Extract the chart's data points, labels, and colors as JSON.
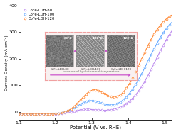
{
  "title": "",
  "xlabel": "Potential (V vs. RHE)",
  "ylabel": "Current Density (mA cm⁻²)",
  "xlim": [
    1.1,
    1.52
  ],
  "ylim": [
    -30,
    400
  ],
  "xticks": [
    1.1,
    1.2,
    1.3,
    1.4,
    1.5
  ],
  "yticks": [
    0,
    100,
    200,
    300,
    400
  ],
  "series": [
    {
      "label": "CoFe-LDH-80",
      "color": "#bb88ee",
      "markersize": 2.0
    },
    {
      "label": "CoFe-LDH-100",
      "color": "#66aaff",
      "markersize": 2.0
    },
    {
      "label": "CoFe-LDH-120",
      "color": "#ff8833",
      "markersize": 2.0
    }
  ],
  "bg_color": "#ffffff",
  "inset_text": "Increase of hydrothermal temperature",
  "inset_labels": [
    "CoFe-LDH-80",
    "CoFe-LDH-100",
    "CoFe-LDH-120"
  ],
  "inset_temps": [
    "80℃",
    "100℃",
    "120℃"
  ],
  "arrow_color": "#cc55cc",
  "inset_border_color": "#f0a0a0"
}
